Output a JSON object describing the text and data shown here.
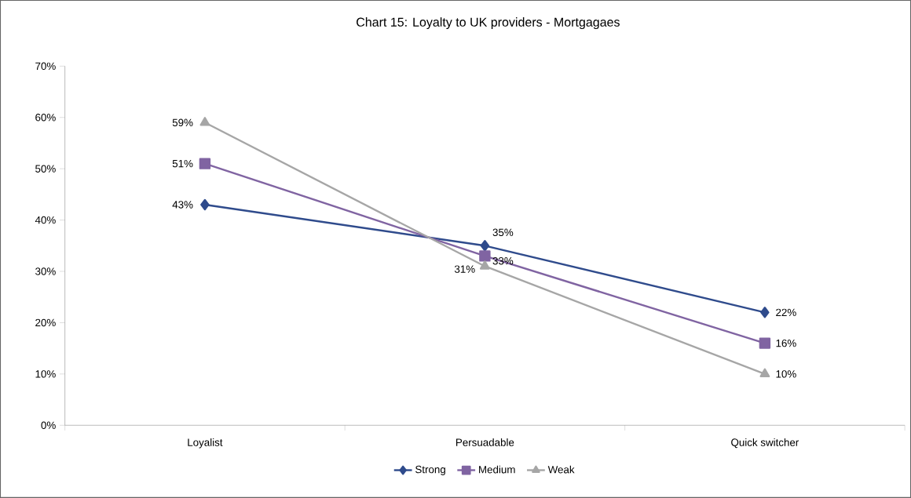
{
  "chart_data": {
    "type": "line",
    "title": "Chart 15: Loyalty to UK providers - Mortgagaes",
    "categories": [
      "Loyalist",
      "Persuadable",
      "Quick switcher"
    ],
    "series": [
      {
        "name": "Strong",
        "color": "#2f4b8c",
        "marker": "diamond",
        "values": [
          43,
          35,
          22
        ],
        "value_labels": [
          "43%",
          "35%",
          "22%"
        ]
      },
      {
        "name": "Medium",
        "color": "#8064a2",
        "marker": "square",
        "values": [
          51,
          33,
          16
        ],
        "value_labels": [
          "51%",
          "33%",
          "16%"
        ]
      },
      {
        "name": "Weak",
        "color": "#a6a6a6",
        "marker": "triangle",
        "values": [
          59,
          31,
          10
        ],
        "value_labels": [
          "59%",
          "31%",
          "10%"
        ]
      }
    ],
    "ylim": [
      0,
      70
    ],
    "yticks": [
      {
        "value": 0,
        "label": "0%"
      },
      {
        "value": 10,
        "label": "10%"
      },
      {
        "value": 20,
        "label": "20%"
      },
      {
        "value": 30,
        "label": "30%"
      },
      {
        "value": 40,
        "label": "40%"
      },
      {
        "value": 50,
        "label": "50%"
      },
      {
        "value": 60,
        "label": "60%"
      },
      {
        "value": 70,
        "label": "70%"
      }
    ],
    "grid": false,
    "legend": "bottom",
    "line_style": "solid"
  }
}
